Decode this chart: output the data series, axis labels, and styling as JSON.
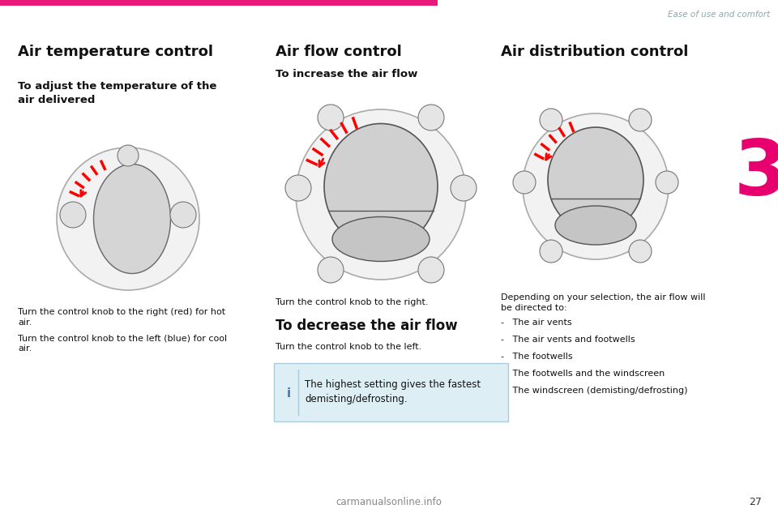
{
  "page_bg": "#ffffff",
  "top_bar_color": "#e8197a",
  "header_text": "Ease of use and comfort",
  "header_color": "#8aabab",
  "chapter_number": "3",
  "chapter_color": "#e8006e",
  "page_number": "27",
  "watermark_text": "carmanualsonline.info",
  "col1_title": "Air temperature control",
  "col1_subtitle": "To adjust the temperature of the\nair delivered",
  "col1_body1": "Turn the control knob to the right (red) for hot\nair.",
  "col1_body2": "Turn the control knob to the left (blue) for cool\nair.",
  "col2_title": "Air flow control",
  "col2_subtitle1": "To increase the air flow",
  "col2_caption": "Turn the control knob to the right.",
  "col2_subtitle2": "To decrease the air flow",
  "col2_body": "Turn the control knob to the left.",
  "col2_note": "The highest setting gives the fastest\ndemisting/defrosting.",
  "col3_title": "Air distribution control",
  "col3_body_intro": "Depending on your selection, the air flow will\nbe directed to:",
  "col3_bullets": [
    "The air vents",
    "The air vents and footwells",
    "The footwells",
    "The footwells and the windscreen",
    "The windscreen (demisting/defrosting)"
  ]
}
